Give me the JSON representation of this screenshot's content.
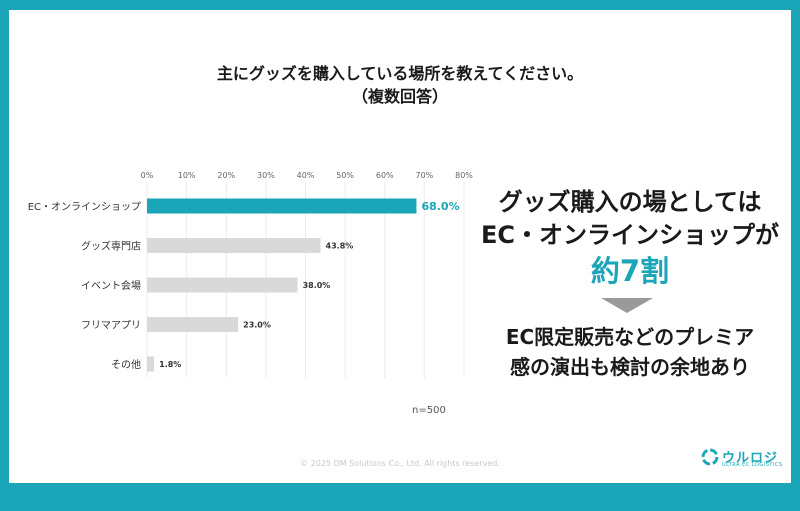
{
  "chart_data": {
    "type": "bar",
    "orientation": "horizontal",
    "title": "主にグッズを購入している場所を教えてください。",
    "subtitle": "（複数回答）",
    "categories": [
      "EC・オンラインショップ",
      "グッズ専門店",
      "イベント会場",
      "フリマアプリ",
      "その他"
    ],
    "values": [
      68.0,
      43.8,
      38.0,
      23.0,
      1.8
    ],
    "value_labels": [
      "68.0%",
      "43.8%",
      "38.0%",
      "23.0%",
      "1.8%"
    ],
    "xticks": [
      "0%",
      "10%",
      "20%",
      "30%",
      "40%",
      "50%",
      "60%",
      "70%",
      "80%"
    ],
    "xlim": [
      0,
      80
    ],
    "highlight_color": "#1aa5b8",
    "bar_color": "#d9d9d9",
    "note": "n=500",
    "grid": true
  },
  "callout": {
    "line1": "グッズ購入の場としては",
    "line2": "EC・オンラインショップが",
    "line3": "約7割",
    "line4": "EC限定販売などのプレミア",
    "line5": "感の演出も検討の余地あり"
  },
  "footer": "© 2025 DM Solutions Co., Ltd. All rights reserved.",
  "logo": {
    "name": "ウルロジ",
    "sub": "ULTRA EC LOGISTICS"
  },
  "colors": {
    "accent": "#1aa5b8",
    "arrow": "#9a9a9a"
  }
}
